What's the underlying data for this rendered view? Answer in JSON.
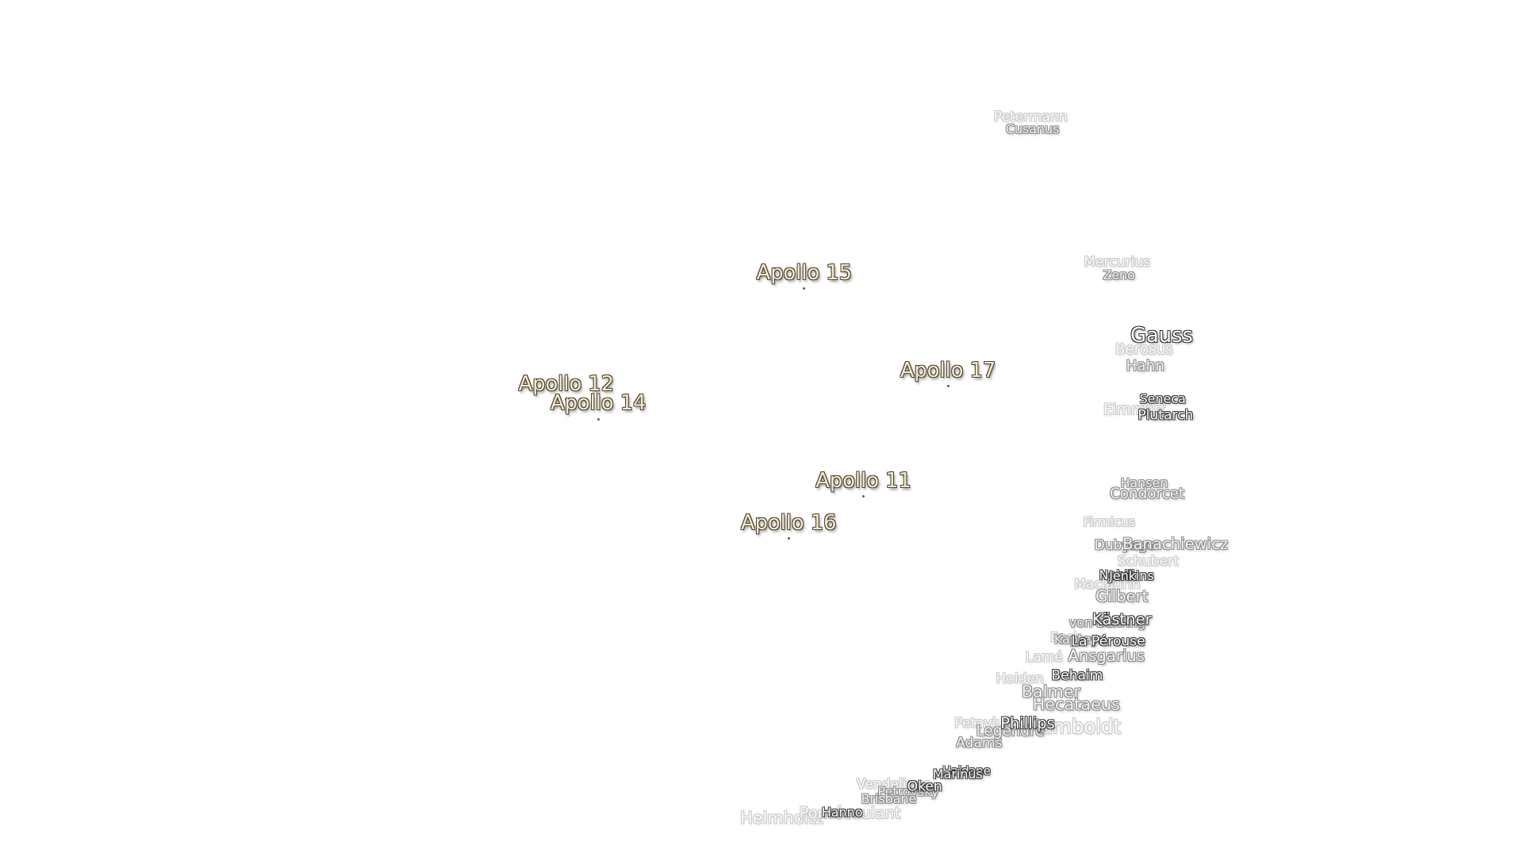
{
  "labels": [
    "Petermann",
    "Cusanus",
    "Mercurius",
    "Zeno",
    "Apollo 15",
    "Gauss",
    "Berosus",
    "Hahn",
    "Apollo 17",
    "Apollo 12",
    "Apollo 14",
    "Eimmart",
    "Seneca",
    "Plutarch",
    "Apollo 11",
    "Hansen",
    "Condorcet",
    "Apollo 16",
    "Firmicus",
    "Dubyago",
    "Banachiewicz",
    "Schubert",
    "Maclaurin",
    "Nobili",
    "Jenkins",
    "Gilbert",
    "von Behring",
    "Kästner",
    "Back",
    "Kapteyn",
    "La Pérouse",
    "Lamé",
    "Ansgarius",
    "Holden",
    "Behaim",
    "Balmer",
    "Hecataeus",
    "Humboldt",
    "Petavius",
    "Legendre",
    "Phillips",
    "Adams",
    "Haldane",
    "Marinus",
    "Vendelinus",
    "Petrovsky",
    "Oken",
    "Brisbane",
    "Helmholtz",
    "Pontécoulant",
    "Hanno"
  ]
}
